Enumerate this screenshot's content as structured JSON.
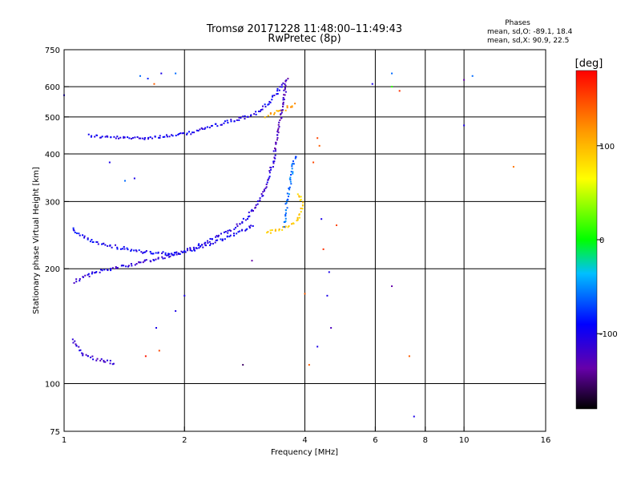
{
  "chart_data": {
    "type": "scatter",
    "title": "Tromsø 20171228 11:48:00–11:49:43",
    "subtitle": "RwPretec (8p)",
    "xlabel": "Frequency [MHz]",
    "ylabel": "Stationary phase Virtual Height [km]",
    "x_scale": "log",
    "y_scale": "log",
    "xlim": [
      1,
      16
    ],
    "ylim": [
      75,
      750
    ],
    "x_ticks": [
      {
        "value": 1,
        "label": "1"
      },
      {
        "value": 2,
        "label": "2"
      },
      {
        "value": 4,
        "label": "4"
      },
      {
        "value": 6,
        "label": "6"
      },
      {
        "value": 8,
        "label": "8"
      },
      {
        "value": 10,
        "label": "10"
      },
      {
        "value": 16,
        "label": "16"
      }
    ],
    "x_gridlines": [
      2,
      4,
      6,
      8,
      10
    ],
    "y_ticks": [
      {
        "value": 75,
        "label": "75"
      },
      {
        "value": 100,
        "label": "100"
      },
      {
        "value": 200,
        "label": "200"
      },
      {
        "value": 300,
        "label": "300"
      },
      {
        "value": 400,
        "label": "400"
      },
      {
        "value": 500,
        "label": "500"
      },
      {
        "value": 600,
        "label": "600"
      },
      {
        "value": 750,
        "label": "750"
      }
    ],
    "y_gridlines": [
      100,
      200,
      300,
      400,
      500,
      600
    ],
    "grid": true,
    "stats": {
      "title": "Phases",
      "line_o": "mean, sd,O: -89.1, 18.4",
      "line_x": "mean, sd,X:  90.9, 22.5"
    },
    "colorbar": {
      "label": "[deg]",
      "range": [
        -180,
        180
      ],
      "ticks": [
        {
          "value": 100,
          "label": "100"
        },
        {
          "value": 0,
          "label": "0"
        },
        {
          "value": -100,
          "label": "-100"
        }
      ]
    },
    "traces": [
      {
        "phase": -100,
        "points": [
          [
            1.15,
            448
          ],
          [
            1.2,
            445
          ],
          [
            1.25,
            443
          ],
          [
            1.3,
            442
          ],
          [
            1.4,
            440
          ],
          [
            1.5,
            440
          ],
          [
            1.6,
            441
          ],
          [
            1.7,
            443
          ],
          [
            1.8,
            445
          ],
          [
            1.9,
            447
          ],
          [
            2.0,
            450
          ],
          [
            2.1,
            456
          ],
          [
            2.2,
            463
          ],
          [
            2.3,
            470
          ],
          [
            2.4,
            476
          ],
          [
            2.5,
            482
          ],
          [
            2.6,
            487
          ],
          [
            2.7,
            492
          ],
          [
            2.8,
            497
          ],
          [
            2.9,
            503
          ],
          [
            3.0,
            510
          ],
          [
            3.1,
            522
          ],
          [
            3.2,
            535
          ],
          [
            3.3,
            555
          ],
          [
            3.4,
            578
          ],
          [
            3.5,
            600
          ],
          [
            3.6,
            618
          ]
        ]
      },
      {
        "phase": -105,
        "points": [
          [
            1.06,
            185
          ],
          [
            1.1,
            188
          ],
          [
            1.15,
            192
          ],
          [
            1.2,
            196
          ],
          [
            1.3,
            200
          ],
          [
            1.4,
            203
          ],
          [
            1.5,
            206
          ],
          [
            1.6,
            209
          ],
          [
            1.7,
            212
          ],
          [
            1.8,
            215
          ],
          [
            1.9,
            219
          ],
          [
            2.0,
            222
          ],
          [
            2.1,
            227
          ],
          [
            2.2,
            232
          ],
          [
            2.3,
            237
          ],
          [
            2.4,
            242
          ],
          [
            2.5,
            247
          ],
          [
            2.6,
            252
          ],
          [
            2.7,
            258
          ],
          [
            2.8,
            266
          ],
          [
            2.9,
            276
          ],
          [
            3.0,
            288
          ],
          [
            3.1,
            305
          ],
          [
            3.2,
            330
          ],
          [
            3.3,
            365
          ],
          [
            3.4,
            400
          ]
        ]
      },
      {
        "phase": -95,
        "points": [
          [
            1.05,
            255
          ],
          [
            1.08,
            248
          ],
          [
            1.12,
            242
          ],
          [
            1.18,
            236
          ],
          [
            1.25,
            232
          ],
          [
            1.35,
            228
          ],
          [
            1.45,
            225
          ],
          [
            1.55,
            222
          ],
          [
            1.65,
            220
          ],
          [
            1.8,
            219
          ],
          [
            1.95,
            220
          ],
          [
            2.1,
            224
          ],
          [
            2.25,
            230
          ],
          [
            2.4,
            236
          ],
          [
            2.55,
            242
          ],
          [
            2.7,
            248
          ],
          [
            2.85,
            255
          ],
          [
            3.0,
            262
          ]
        ]
      },
      {
        "phase": 90,
        "points": [
          [
            3.2,
            248
          ],
          [
            3.3,
            250
          ],
          [
            3.4,
            252
          ],
          [
            3.5,
            254
          ],
          [
            3.6,
            257
          ],
          [
            3.7,
            260
          ],
          [
            3.8,
            265
          ],
          [
            3.85,
            272
          ],
          [
            3.9,
            282
          ],
          [
            3.95,
            295
          ],
          [
            3.9,
            310
          ],
          [
            3.85,
            318
          ]
        ]
      },
      {
        "phase": 110,
        "points": [
          [
            3.2,
            500
          ],
          [
            3.3,
            507
          ],
          [
            3.4,
            514
          ],
          [
            3.5,
            520
          ],
          [
            3.6,
            527
          ],
          [
            3.7,
            533
          ],
          [
            3.8,
            540
          ]
        ]
      },
      {
        "phase": -120,
        "points": [
          [
            3.35,
            405
          ],
          [
            3.4,
            430
          ],
          [
            3.45,
            470
          ],
          [
            3.5,
            520
          ],
          [
            3.55,
            570
          ],
          [
            3.6,
            620
          ],
          [
            3.62,
            640
          ]
        ]
      },
      {
        "phase": -60,
        "points": [
          [
            3.55,
            260
          ],
          [
            3.6,
            290
          ],
          [
            3.65,
            320
          ],
          [
            3.7,
            350
          ],
          [
            3.75,
            380
          ],
          [
            3.8,
            400
          ]
        ]
      },
      {
        "phase": -110,
        "points": [
          [
            1.05,
            130
          ],
          [
            1.08,
            125
          ],
          [
            1.1,
            120
          ],
          [
            1.15,
            118
          ],
          [
            1.2,
            116
          ],
          [
            1.25,
            115
          ],
          [
            1.3,
            114
          ],
          [
            1.35,
            113
          ]
        ]
      }
    ],
    "scatter": [
      {
        "x": 1.0,
        "y": 570,
        "phase": -100
      },
      {
        "x": 1.3,
        "y": 380,
        "phase": -100
      },
      {
        "x": 1.42,
        "y": 340,
        "phase": -60
      },
      {
        "x": 1.5,
        "y": 345,
        "phase": -100
      },
      {
        "x": 1.55,
        "y": 640,
        "phase": -60
      },
      {
        "x": 1.62,
        "y": 630,
        "phase": -80
      },
      {
        "x": 1.68,
        "y": 610,
        "phase": 140
      },
      {
        "x": 1.75,
        "y": 650,
        "phase": -100
      },
      {
        "x": 1.9,
        "y": 650,
        "phase": -60
      },
      {
        "x": 1.7,
        "y": 140,
        "phase": -100
      },
      {
        "x": 1.6,
        "y": 118,
        "phase": 170
      },
      {
        "x": 1.73,
        "y": 122,
        "phase": 150
      },
      {
        "x": 1.9,
        "y": 155,
        "phase": -100
      },
      {
        "x": 2.0,
        "y": 170,
        "phase": -100
      },
      {
        "x": 2.8,
        "y": 112,
        "phase": -150
      },
      {
        "x": 2.95,
        "y": 210,
        "phase": -130
      },
      {
        "x": 4.3,
        "y": 440,
        "phase": 150
      },
      {
        "x": 4.35,
        "y": 420,
        "phase": 140
      },
      {
        "x": 4.2,
        "y": 380,
        "phase": 150
      },
      {
        "x": 4.4,
        "y": 270,
        "phase": -100
      },
      {
        "x": 4.45,
        "y": 225,
        "phase": 160
      },
      {
        "x": 4.6,
        "y": 196,
        "phase": -100
      },
      {
        "x": 4.55,
        "y": 170,
        "phase": -100
      },
      {
        "x": 4.65,
        "y": 140,
        "phase": -120
      },
      {
        "x": 4.8,
        "y": 260,
        "phase": 150
      },
      {
        "x": 4.3,
        "y": 125,
        "phase": -100
      },
      {
        "x": 4.0,
        "y": 172,
        "phase": 140
      },
      {
        "x": 4.1,
        "y": 112,
        "phase": 140
      },
      {
        "x": 5.9,
        "y": 610,
        "phase": -100
      },
      {
        "x": 6.6,
        "y": 650,
        "phase": -60
      },
      {
        "x": 6.6,
        "y": 600,
        "phase": 10
      },
      {
        "x": 6.9,
        "y": 585,
        "phase": 160
      },
      {
        "x": 6.6,
        "y": 180,
        "phase": -130
      },
      {
        "x": 7.3,
        "y": 118,
        "phase": 140
      },
      {
        "x": 7.5,
        "y": 82,
        "phase": -100
      },
      {
        "x": 10.0,
        "y": 625,
        "phase": -130
      },
      {
        "x": 10.5,
        "y": 640,
        "phase": -60
      },
      {
        "x": 10.0,
        "y": 475,
        "phase": -100
      },
      {
        "x": 13.3,
        "y": 370,
        "phase": 130
      }
    ]
  }
}
